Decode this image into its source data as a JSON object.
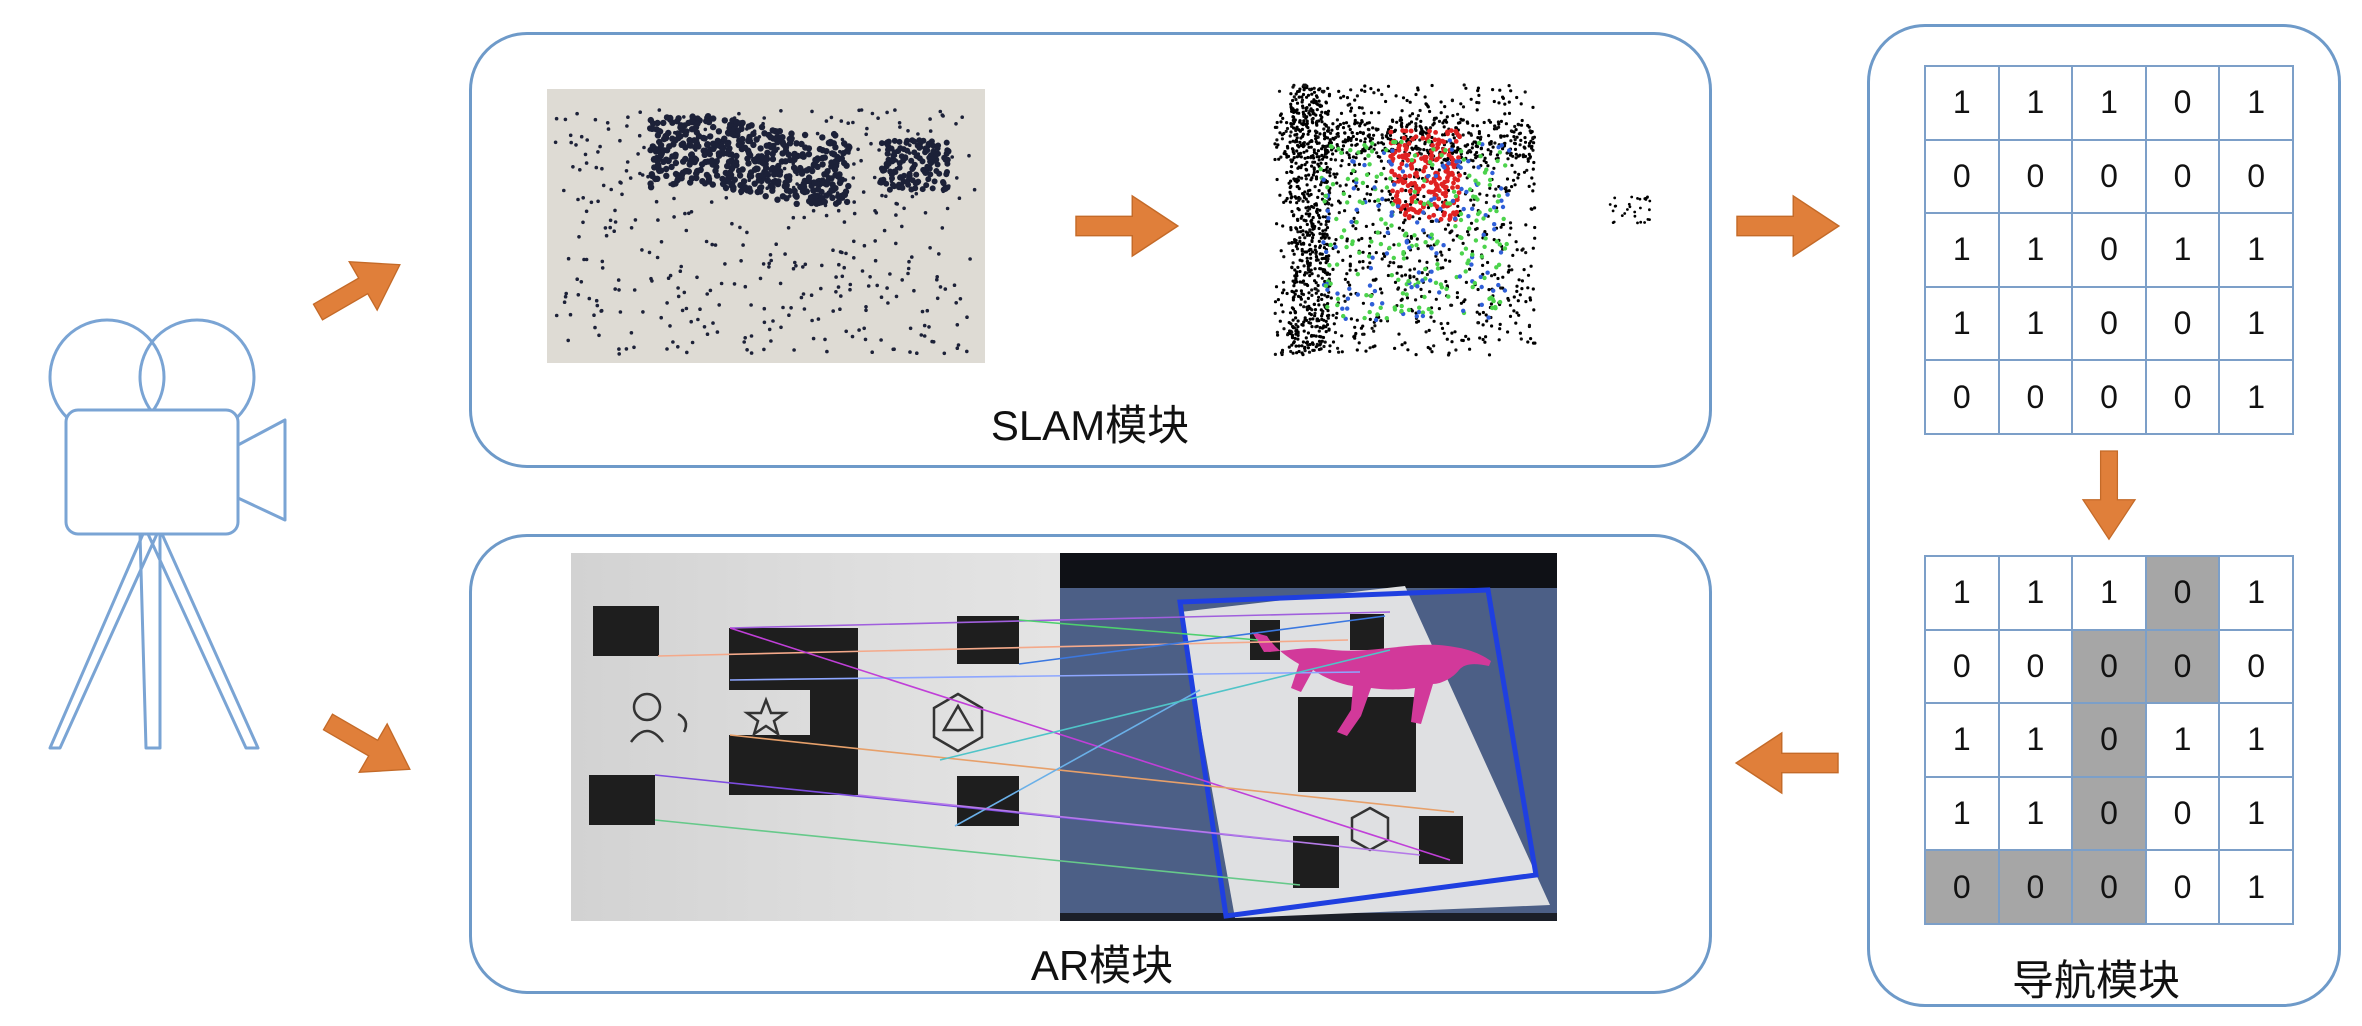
{
  "slam": {
    "label": "SLAM模块"
  },
  "ar": {
    "label": "AR模块"
  },
  "nav": {
    "label": "导航模块",
    "grid_top": [
      [
        "1",
        "1",
        "1",
        "0",
        "1"
      ],
      [
        "0",
        "0",
        "0",
        "0",
        "0"
      ],
      [
        "1",
        "1",
        "0",
        "1",
        "1"
      ],
      [
        "1",
        "1",
        "0",
        "0",
        "1"
      ],
      [
        "0",
        "0",
        "0",
        "0",
        "1"
      ]
    ],
    "grid_bottom": [
      [
        "1",
        "1",
        "1",
        "0",
        "1"
      ],
      [
        "0",
        "0",
        "0",
        "0",
        "0"
      ],
      [
        "1",
        "1",
        "0",
        "1",
        "1"
      ],
      [
        "1",
        "1",
        "0",
        "0",
        "1"
      ],
      [
        "0",
        "0",
        "0",
        "0",
        "1"
      ]
    ],
    "path_cells": [
      [
        0,
        3
      ],
      [
        1,
        2
      ],
      [
        1,
        3
      ],
      [
        2,
        2
      ],
      [
        3,
        2
      ],
      [
        4,
        0
      ],
      [
        4,
        1
      ],
      [
        4,
        2
      ]
    ]
  },
  "colors": {
    "box_border": "#6e9ac9",
    "arrow": "#e07f3a",
    "camera_outline": "#7aa4d4",
    "path_highlight": "#a6a6a6",
    "ar_model": "#d2399a",
    "ar_marker_frame": "#1f3fe0"
  },
  "icons": {
    "camera": "video-camera-icon",
    "arrow": "arrow-icon"
  }
}
